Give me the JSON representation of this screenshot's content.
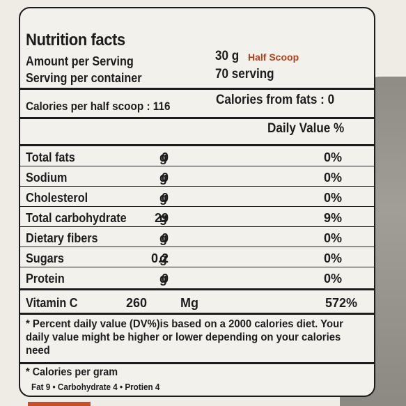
{
  "label": {
    "title": "Nutrition facts",
    "amount_per_serving_label": "Amount per Serving",
    "amount_per_serving_value": "30 g",
    "amount_per_serving_note": "Half Scoop",
    "servings_label": "Serving per container",
    "servings_value": "70 serving",
    "calories_label": "Calories per half scoop : 116",
    "calories_from_fats": "Calories from fats : 0",
    "daily_value_header": "Daily Value %",
    "nutrients": [
      {
        "name": "Total fats",
        "amount": "0",
        "unit": "g",
        "dv": "0%"
      },
      {
        "name": "Sodium",
        "amount": "0",
        "unit": "g",
        "dv": "0%"
      },
      {
        "name": "Cholesterol",
        "amount": "0",
        "unit": "g",
        "dv": "0%"
      },
      {
        "name": "Total carbohydrate",
        "amount": "29",
        "unit": "g",
        "dv": "9%"
      },
      {
        "name": "Dietary fibers",
        "amount": "0",
        "unit": "g",
        "dv": "0%"
      },
      {
        "name": "Sugars",
        "amount": "0.2",
        "unit": "g",
        "dv": "0%"
      },
      {
        "name": "Protein",
        "amount": "0",
        "unit": "g",
        "dv": "0%"
      }
    ],
    "vitamin": {
      "name": "Vitamin C",
      "amount": "260",
      "unit": "Mg",
      "dv": "572%"
    },
    "footnote": "* Percent daily value (DV%)is based on a 2000 calories diet. Your daily value might be higher or lower depending on your calories need",
    "calories_per_gram_title": "* Calories per gram",
    "calories_per_gram_values": "Fat 9 • Carbohydrate 4 • Protien 4"
  },
  "colors": {
    "accent_note": "#b5401c",
    "ink": "#1c1c1c",
    "panel": "#f3f1ec"
  }
}
